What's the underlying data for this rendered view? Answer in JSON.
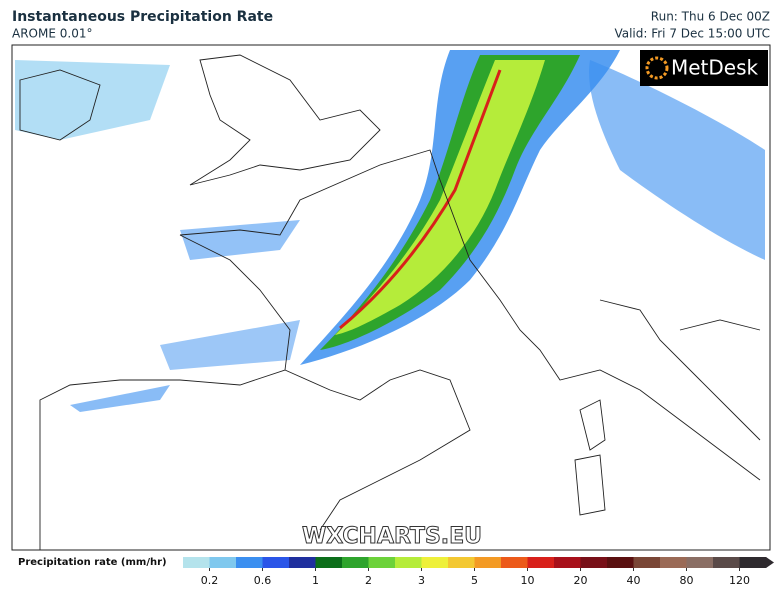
{
  "header": {
    "title": "Instantaneous Precipitation Rate",
    "model": "AROME 0.01°",
    "run": "Run: Thu 6 Dec 00Z",
    "valid": "Valid: Fri 7 Dec 15:00 UTC"
  },
  "logo": "MetDesk",
  "watermark": "WXCHARTS.EU",
  "colorbar": {
    "label": "Precipitation rate (mm/hr)",
    "ticks": [
      "0.2",
      "0.6",
      "1",
      "2",
      "3",
      "5",
      "10",
      "20",
      "40",
      "80",
      "120"
    ],
    "colors": [
      "#b4e3ec",
      "#7fc8ee",
      "#3b8ff0",
      "#2a55e8",
      "#1f2f9e",
      "#0c6e1a",
      "#2ea42c",
      "#6cd23a",
      "#b5ec3a",
      "#eef03a",
      "#f3c832",
      "#f39a24",
      "#ec5a1a",
      "#d8201a",
      "#a8101a",
      "#781018",
      "#5a1010",
      "#7a4636",
      "#9a6a56",
      "#8a6e64",
      "#5a4a48",
      "#2e2a2e"
    ]
  }
}
